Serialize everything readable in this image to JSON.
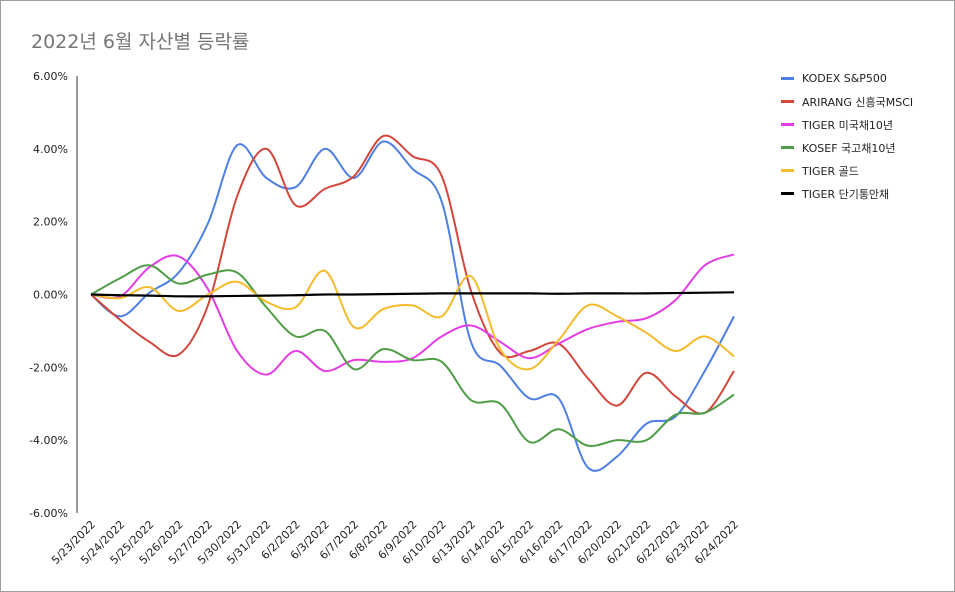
{
  "chart_data": {
    "type": "line",
    "title": "2022년 6월 자산별 등락률",
    "xlabel": "",
    "ylabel": "",
    "ylim": [
      -6,
      6
    ],
    "y_ticks": [
      "6.00%",
      "4.00%",
      "2.00%",
      "0.00%",
      "-2.00%",
      "-4.00%",
      "-6.00%"
    ],
    "y_tick_values": [
      6,
      4,
      2,
      0,
      -2,
      -4,
      -6
    ],
    "categories": [
      "5/23/2022",
      "5/24/2022",
      "5/25/2022",
      "5/26/2022",
      "5/27/2022",
      "5/30/2022",
      "5/31/2022",
      "6/2/2022",
      "6/3/2022",
      "6/7/2022",
      "6/8/2022",
      "6/9/2022",
      "6/10/2022",
      "6/13/2022",
      "6/14/2022",
      "6/15/2022",
      "6/16/2022",
      "6/17/2022",
      "6/20/2022",
      "6/21/2022",
      "6/22/2022",
      "6/23/2022",
      "6/24/2022"
    ],
    "legend_position": "right",
    "grid": false,
    "series": [
      {
        "name": "KODEX S&P500",
        "color": "#4e7fe3",
        "values": [
          0,
          -0.6,
          0.05,
          0.6,
          1.95,
          4.1,
          3.2,
          2.95,
          4.0,
          3.2,
          4.2,
          3.45,
          2.55,
          -1.3,
          -1.95,
          -2.85,
          -2.85,
          -4.75,
          -4.45,
          -3.55,
          -3.35,
          -2.1,
          -0.6
        ]
      },
      {
        "name": "ARIRANG 신흥국MSCI",
        "color": "#d1473b",
        "values": [
          0,
          -0.7,
          -1.3,
          -1.65,
          -0.3,
          2.7,
          4.0,
          2.45,
          2.9,
          3.25,
          4.35,
          3.8,
          3.25,
          0.1,
          -1.6,
          -1.55,
          -1.35,
          -2.3,
          -3.05,
          -2.15,
          -2.8,
          -3.25,
          -2.1
        ]
      },
      {
        "name": "TIGER 미국채10년",
        "color": "#e43ce5",
        "values": [
          0,
          -0.05,
          0.75,
          1.05,
          0.15,
          -1.55,
          -2.2,
          -1.55,
          -2.1,
          -1.8,
          -1.85,
          -1.75,
          -1.15,
          -0.85,
          -1.3,
          -1.75,
          -1.35,
          -0.95,
          -0.75,
          -0.65,
          -0.15,
          0.8,
          1.1
        ]
      },
      {
        "name": "KOSEF 국고채10년",
        "color": "#4f9d46",
        "values": [
          0,
          0.45,
          0.8,
          0.3,
          0.55,
          0.6,
          -0.35,
          -1.15,
          -1.0,
          -2.05,
          -1.5,
          -1.8,
          -1.85,
          -2.9,
          -3.0,
          -4.05,
          -3.7,
          -4.15,
          -4.0,
          -4.0,
          -3.3,
          -3.25,
          -2.75
        ]
      },
      {
        "name": "TIGER 골드",
        "color": "#f4bb2a",
        "values": [
          0,
          -0.1,
          0.2,
          -0.45,
          0.0,
          0.35,
          -0.2,
          -0.35,
          0.65,
          -0.9,
          -0.4,
          -0.3,
          -0.6,
          0.5,
          -1.5,
          -2.05,
          -1.25,
          -0.3,
          -0.6,
          -1.05,
          -1.55,
          -1.15,
          -1.7
        ]
      },
      {
        "name": "TIGER 단기통안채",
        "color": "#000000",
        "values": [
          0,
          -0.02,
          -0.03,
          -0.05,
          -0.05,
          -0.04,
          -0.03,
          -0.02,
          0.0,
          0.0,
          0.01,
          0.02,
          0.03,
          0.03,
          0.03,
          0.03,
          0.02,
          0.03,
          0.03,
          0.03,
          0.04,
          0.05,
          0.06
        ]
      }
    ]
  }
}
